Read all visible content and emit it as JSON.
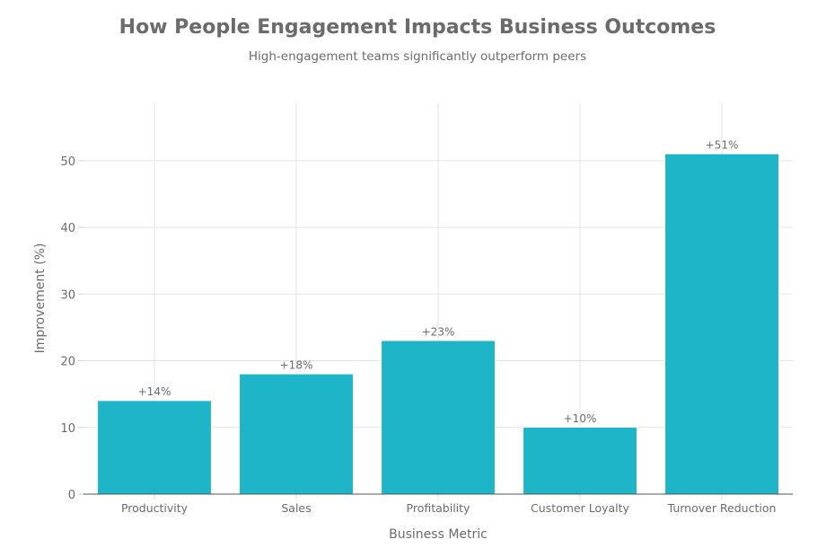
{
  "chart_data": {
    "type": "bar",
    "title": "How People Engagement Impacts Business Outcomes",
    "subtitle": "High-engagement teams significantly outperform peers",
    "xlabel": "Business Metric",
    "ylabel": "Improvement (%)",
    "categories": [
      "Productivity",
      "Sales",
      "Profitability",
      "Customer Loyalty",
      "Turnover Reduction"
    ],
    "values": [
      14,
      18,
      23,
      10,
      51
    ],
    "data_labels": [
      "+14%",
      "+18%",
      "+23%",
      "+10%",
      "+51%"
    ],
    "yticks": [
      0,
      10,
      20,
      30,
      40,
      50
    ],
    "ylim": [
      0,
      58.6
    ],
    "grid": true,
    "bar_color": "#1fb5c9"
  }
}
